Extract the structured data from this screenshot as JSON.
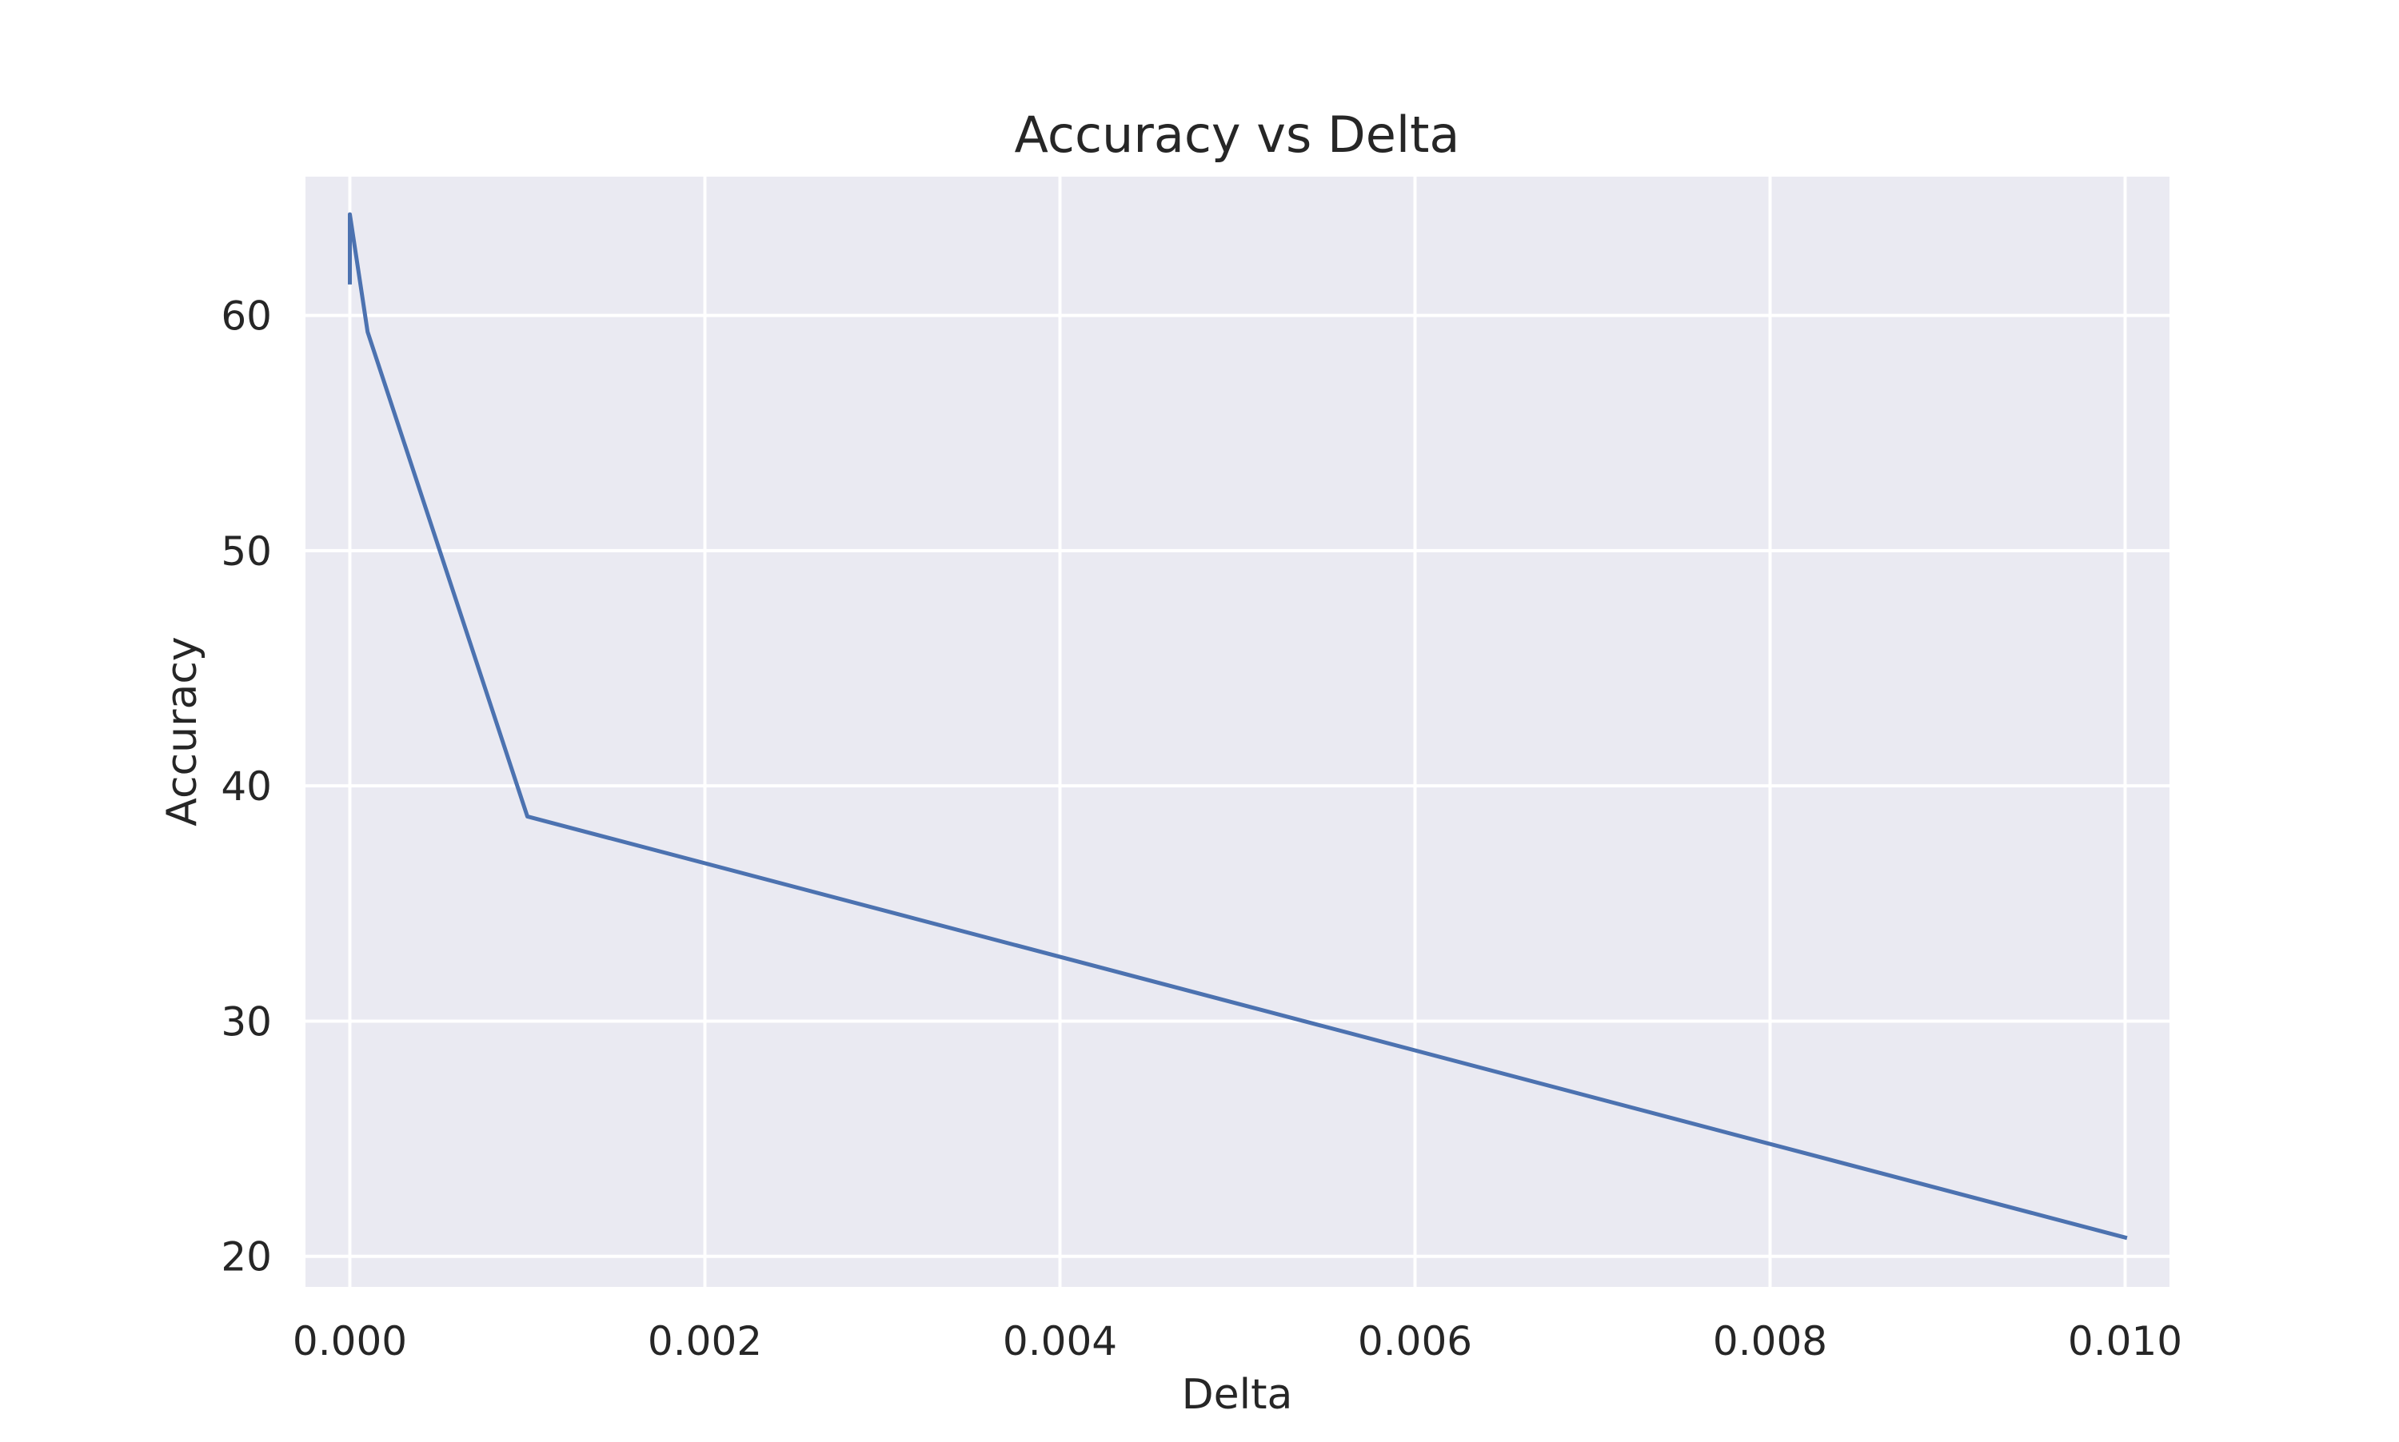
{
  "chart_data": {
    "type": "line",
    "title": "Accuracy vs Delta",
    "xlabel": "Delta",
    "ylabel": "Accuracy",
    "xlim": [
      -0.00025,
      0.01025
    ],
    "ylim": [
      18.7,
      65.9
    ],
    "grid": true,
    "x_ticks": [
      0.0,
      0.002,
      0.004,
      0.006,
      0.008,
      0.01
    ],
    "x_tick_labels": [
      "0.000",
      "0.002",
      "0.004",
      "0.006",
      "0.008",
      "0.010"
    ],
    "y_ticks": [
      20,
      30,
      40,
      50,
      60
    ],
    "y_tick_labels": [
      "20",
      "30",
      "40",
      "50",
      "60"
    ],
    "series": [
      {
        "color": "#4c72b0",
        "x": [
          0.0,
          0.0,
          0.0001,
          0.001,
          0.01
        ],
        "y": [
          61.4,
          64.3,
          59.3,
          38.7,
          20.8
        ]
      }
    ]
  },
  "colors": {
    "plot_background": "#eaeaf2",
    "grid": "#ffffff",
    "text": "#262626"
  }
}
